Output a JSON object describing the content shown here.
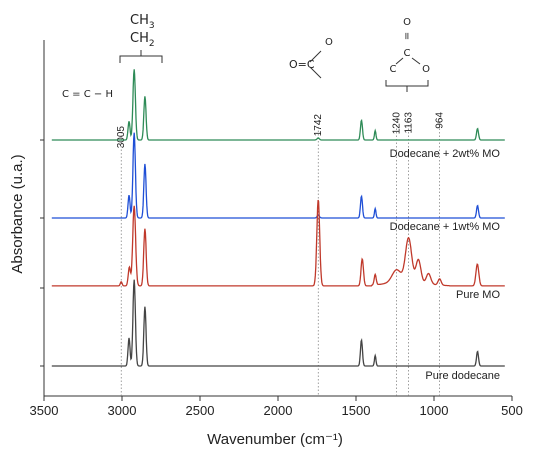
{
  "chart_data": {
    "type": "line",
    "xlabel": "Wavenumber (cm⁻¹)",
    "ylabel": "Absorbance (u.a.)",
    "xlim": [
      3500,
      500
    ],
    "x_reversed": true,
    "x_ticks": [
      3500,
      3000,
      2500,
      2000,
      1500,
      1000,
      500
    ],
    "grid": false,
    "series": [
      {
        "name": "Dodecane + 2wt% MO",
        "color": "#2e8b57",
        "baseline": 0.0,
        "peaks": [
          {
            "x": 2955,
            "h": 0.18,
            "w": 9
          },
          {
            "x": 2922,
            "h": 0.68,
            "w": 11
          },
          {
            "x": 2853,
            "h": 0.42,
            "w": 10
          },
          {
            "x": 1742,
            "h": 0.02,
            "w": 10
          },
          {
            "x": 1465,
            "h": 0.19,
            "w": 9
          },
          {
            "x": 1377,
            "h": 0.09,
            "w": 7
          },
          {
            "x": 721,
            "h": 0.11,
            "w": 9
          }
        ]
      },
      {
        "name": "Dodecane + 1wt% MO",
        "color": "#1f4fd6",
        "baseline": 0.0,
        "peaks": [
          {
            "x": 2955,
            "h": 0.22,
            "w": 9
          },
          {
            "x": 2922,
            "h": 0.82,
            "w": 11
          },
          {
            "x": 2853,
            "h": 0.52,
            "w": 10
          },
          {
            "x": 1742,
            "h": 0.03,
            "w": 10
          },
          {
            "x": 1465,
            "h": 0.21,
            "w": 9
          },
          {
            "x": 1377,
            "h": 0.09,
            "w": 7
          },
          {
            "x": 721,
            "h": 0.12,
            "w": 9
          }
        ]
      },
      {
        "name": "Pure MO",
        "color": "#c0392b",
        "baseline": 0.02,
        "peaks": [
          {
            "x": 3005,
            "h": 0.04,
            "w": 8
          },
          {
            "x": 2953,
            "h": 0.18,
            "w": 10
          },
          {
            "x": 2922,
            "h": 0.77,
            "w": 13
          },
          {
            "x": 2853,
            "h": 0.55,
            "w": 11
          },
          {
            "x": 1742,
            "h": 0.83,
            "w": 13
          },
          {
            "x": 1460,
            "h": 0.26,
            "w": 11
          },
          {
            "x": 1377,
            "h": 0.1,
            "w": 9
          },
          {
            "x": 1240,
            "h": 0.12,
            "w": 40
          },
          {
            "x": 1163,
            "h": 0.42,
            "w": 28
          },
          {
            "x": 1100,
            "h": 0.22,
            "w": 22
          },
          {
            "x": 1035,
            "h": 0.1,
            "w": 20
          },
          {
            "x": 964,
            "h": 0.06,
            "w": 14
          },
          {
            "x": 722,
            "h": 0.21,
            "w": 13
          }
        ]
      },
      {
        "name": "Pure dodecane",
        "color": "#444444",
        "baseline": 0.0,
        "peaks": [
          {
            "x": 2955,
            "h": 0.27,
            "w": 9
          },
          {
            "x": 2922,
            "h": 0.83,
            "w": 11
          },
          {
            "x": 2853,
            "h": 0.57,
            "w": 10
          },
          {
            "x": 1465,
            "h": 0.25,
            "w": 9
          },
          {
            "x": 1377,
            "h": 0.1,
            "w": 7
          },
          {
            "x": 721,
            "h": 0.14,
            "w": 9
          }
        ]
      }
    ],
    "reference_lines": [
      {
        "x": 3005,
        "label": "3005"
      },
      {
        "x": 1742,
        "label": "1742"
      },
      {
        "x": 1240,
        "label": "1240"
      },
      {
        "x": 1163,
        "label": "1163"
      },
      {
        "x": 964,
        "label": "964"
      }
    ],
    "annotations": {
      "ch3": "CH",
      "ch3_sub": "3",
      "ch2": "CH",
      "ch2_sub": "2",
      "alkene": "C = C − H",
      "ester_bracket": "Y",
      "carbonyl_o": "O",
      "carbonyl_eq": "O=C",
      "ester_o_top": "O",
      "ester_dbl": "=",
      "ester_c_center": "C",
      "ester_c_left": "C",
      "ester_o_right": "O"
    }
  }
}
